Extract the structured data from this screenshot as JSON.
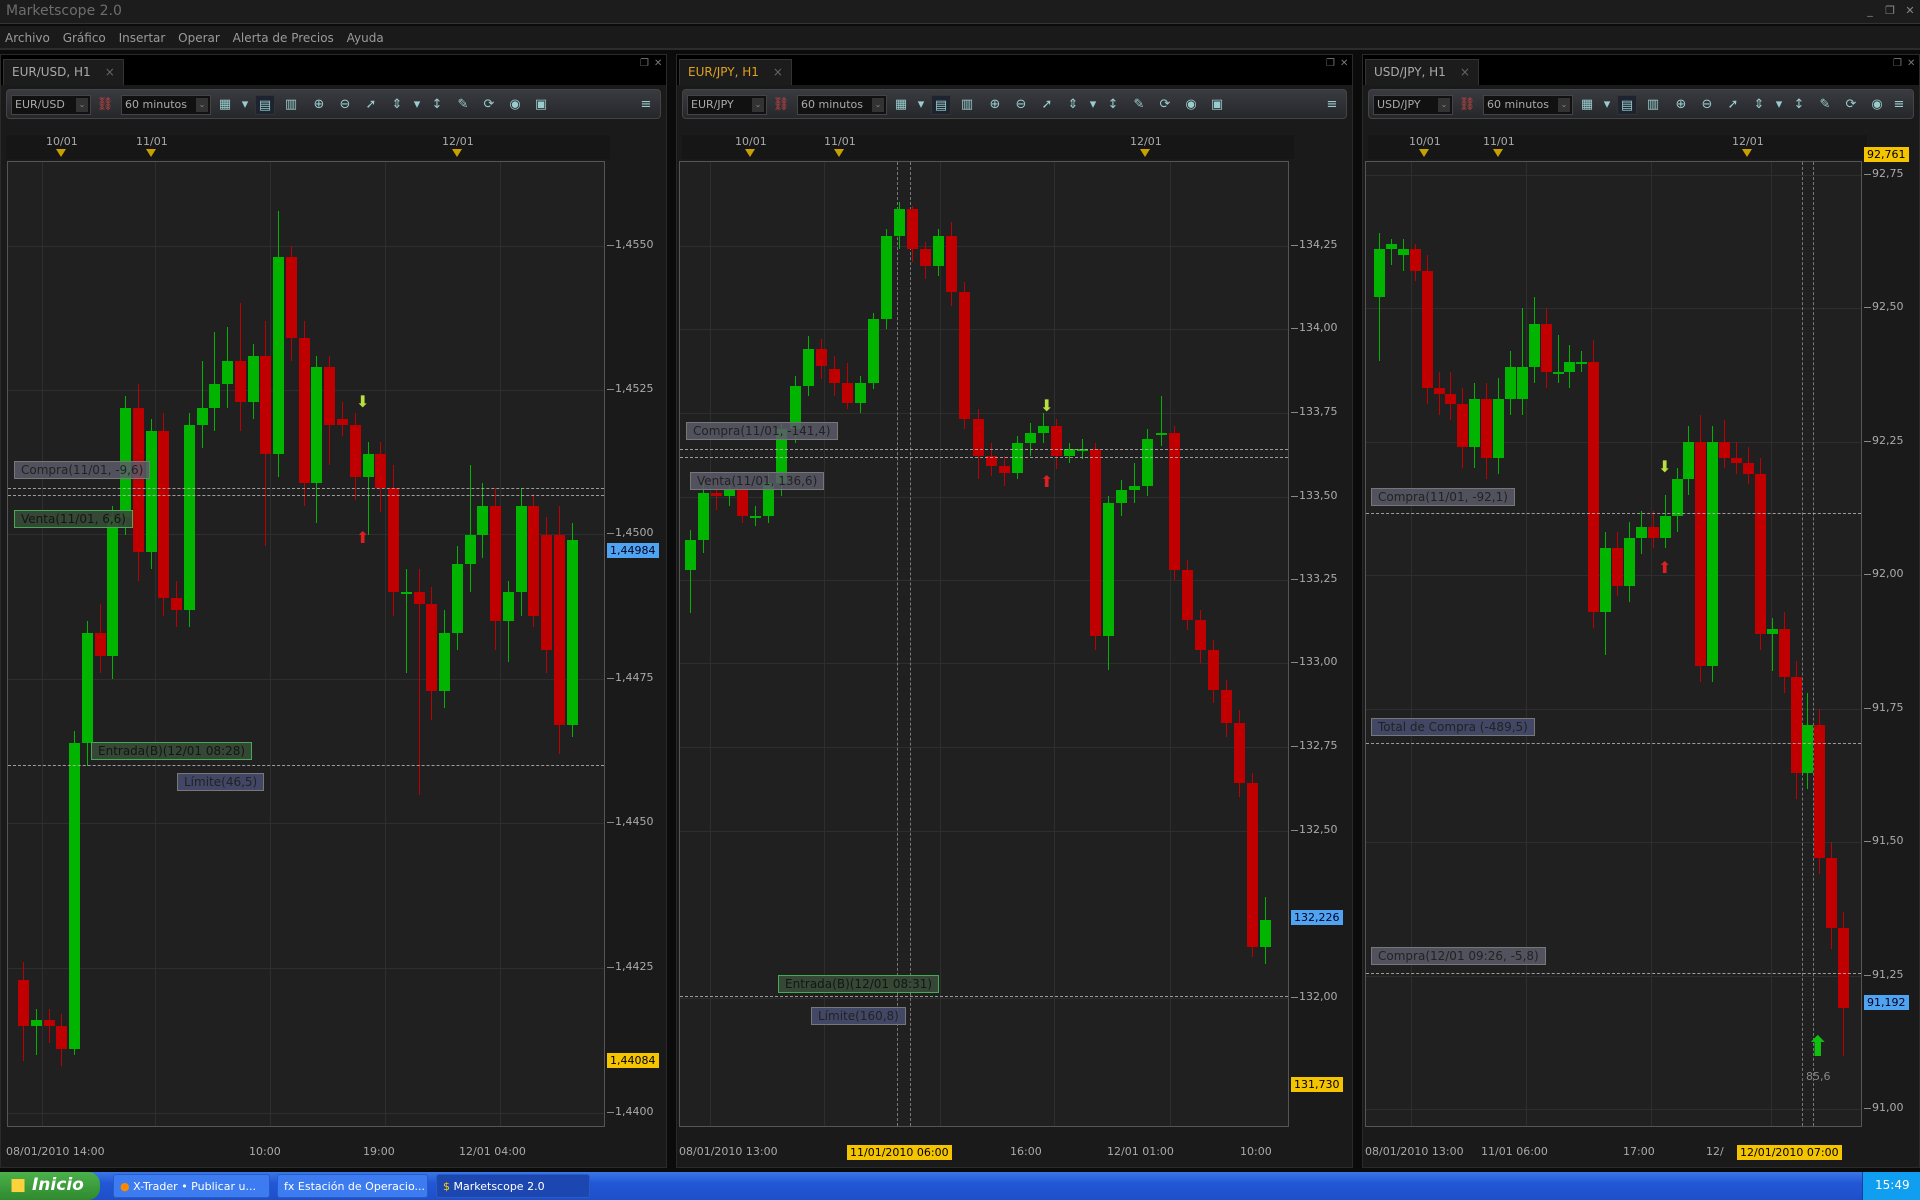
{
  "app": {
    "title": "Marketscope 2.0",
    "controls": [
      "_",
      "❐",
      "✕"
    ]
  },
  "menu": [
    "Archivo",
    "Gráfico",
    "Insertar",
    "Operar",
    "Alerta de Precios",
    "Ayuda"
  ],
  "colors": {
    "bull": "#00b400",
    "bear": "#c00000",
    "bid_label": "#4fa3f0",
    "highlight": "#f5c400",
    "background": "#202020"
  },
  "panels": [
    {
      "tab": "EUR/USD, H1",
      "active": false,
      "toolbar": {
        "symbol": "EUR/USD",
        "timeframe": "60 minutos"
      },
      "top_dates": [
        "10/01",
        "11/01",
        "12/01"
      ],
      "bottom_times": [
        "08/01/2010 14:00",
        "10:00",
        "19:00",
        "12/01 04:00"
      ],
      "price_ticks": [
        "1,4550",
        "1,4525",
        "1,4500",
        "1,4475",
        "1,4450",
        "1,4425",
        "1,4400"
      ],
      "bid": "1,44984",
      "low_marker": "1,44084",
      "orders": [
        "Compra(11/01, -9,6)",
        "Venta(11/01, 6,6)",
        "Entrada(B)(12/01 08:28)",
        "Límite(46,5)"
      ]
    },
    {
      "tab": "EUR/JPY, H1",
      "active": true,
      "toolbar": {
        "symbol": "EUR/JPY",
        "timeframe": "60 minutos"
      },
      "top_dates": [
        "10/01",
        "11/01",
        "12/01"
      ],
      "bottom_times": [
        "08/01/2010 13:00",
        "11/01/2010 06:00",
        "16:00",
        "12/01 01:00",
        "10:00"
      ],
      "price_ticks": [
        "134,25",
        "134,00",
        "133,75",
        "133,50",
        "133,25",
        "133,00",
        "132,75",
        "132,50",
        "132,00"
      ],
      "bid": "132,226",
      "low_marker": "131,730",
      "orders": [
        "Compra(11/01, -141,4)",
        "Venta(11/01, 136,6)",
        "Entrada(B)(12/01 08:31)",
        "Límite(160,8)"
      ]
    },
    {
      "tab": "USD/JPY, H1",
      "active": false,
      "toolbar": {
        "symbol": "USD/JPY",
        "timeframe": "60 minutos"
      },
      "top_dates": [
        "10/01",
        "11/01",
        "12/01"
      ],
      "bottom_times": [
        "08/01/2010 13:00",
        "11/01 06:00",
        "17:00",
        "12/",
        "12/01/2010 07:00"
      ],
      "price_ticks": [
        "92,75",
        "92,50",
        "92,25",
        "92,00",
        "91,75",
        "91,50",
        "91,25",
        "91,00"
      ],
      "bid": "91,192",
      "high_marker": "92,761",
      "signal_value": "85,6",
      "orders": [
        "Compra(11/01, -92,1)",
        "Total de Compra (-489,5)",
        "Compra(12/01 09:26, -5,8)"
      ]
    }
  ],
  "chart_data": [
    {
      "type": "candlestick",
      "title": "EUR/USD, H1",
      "ylim": [
        1.439,
        1.4565
      ],
      "ohlc": [
        [
          1.4423,
          1.4426,
          1.4409,
          1.4415
        ],
        [
          1.4415,
          1.4418,
          1.441,
          1.4416
        ],
        [
          1.4416,
          1.4418,
          1.4412,
          1.4415
        ],
        [
          1.4415,
          1.4417,
          1.4408,
          1.4411
        ],
        [
          1.4411,
          1.4466,
          1.441,
          1.4464
        ],
        [
          1.4464,
          1.4485,
          1.446,
          1.4483
        ],
        [
          1.4483,
          1.4488,
          1.4476,
          1.4479
        ],
        [
          1.4479,
          1.4505,
          1.4475,
          1.4503
        ],
        [
          1.4503,
          1.4524,
          1.45,
          1.4522
        ],
        [
          1.4522,
          1.4526,
          1.4492,
          1.4497
        ],
        [
          1.4497,
          1.452,
          1.4494,
          1.4518
        ],
        [
          1.4518,
          1.4521,
          1.4486,
          1.4489
        ],
        [
          1.4489,
          1.4492,
          1.4484,
          1.4487
        ],
        [
          1.4487,
          1.4521,
          1.4484,
          1.4519
        ],
        [
          1.4519,
          1.453,
          1.4515,
          1.4522
        ],
        [
          1.4522,
          1.4535,
          1.4518,
          1.4526
        ],
        [
          1.4526,
          1.4536,
          1.4522,
          1.453
        ],
        [
          1.453,
          1.454,
          1.4518,
          1.4523
        ],
        [
          1.4523,
          1.4533,
          1.452,
          1.4531
        ],
        [
          1.4531,
          1.4537,
          1.4498,
          1.4514
        ],
        [
          1.4514,
          1.4556,
          1.451,
          1.4548
        ],
        [
          1.4548,
          1.455,
          1.453,
          1.4534
        ],
        [
          1.4534,
          1.4537,
          1.4505,
          1.4509
        ],
        [
          1.4509,
          1.4531,
          1.4502,
          1.4529
        ],
        [
          1.4529,
          1.4531,
          1.4512,
          1.4519
        ],
        [
          1.452,
          1.4523,
          1.4517,
          1.4519
        ],
        [
          1.4519,
          1.4521,
          1.4506,
          1.451
        ],
        [
          1.451,
          1.4516,
          1.45,
          1.4514
        ],
        [
          1.4514,
          1.4516,
          1.4504,
          1.4508
        ],
        [
          1.4508,
          1.4512,
          1.4486,
          1.449
        ],
        [
          1.449,
          1.4494,
          1.4476,
          1.449
        ],
        [
          1.449,
          1.4494,
          1.4455,
          1.4488
        ],
        [
          1.4488,
          1.4491,
          1.4468,
          1.4473
        ],
        [
          1.4473,
          1.4487,
          1.447,
          1.4483
        ],
        [
          1.4483,
          1.4498,
          1.448,
          1.4495
        ],
        [
          1.4495,
          1.4512,
          1.449,
          1.45
        ],
        [
          1.45,
          1.4509,
          1.4496,
          1.4505
        ],
        [
          1.4505,
          1.4508,
          1.448,
          1.4485
        ],
        [
          1.4485,
          1.4492,
          1.4478,
          1.449
        ],
        [
          1.449,
          1.4508,
          1.4486,
          1.4505
        ],
        [
          1.4505,
          1.4507,
          1.4484,
          1.4486
        ],
        [
          1.45,
          1.4503,
          1.4476,
          1.448
        ],
        [
          1.45,
          1.4505,
          1.4462,
          1.4467
        ],
        [
          1.4467,
          1.4502,
          1.4465,
          1.4499
        ]
      ]
    },
    {
      "type": "candlestick",
      "title": "EUR/JPY, H1",
      "ylim": [
        131.65,
        134.45
      ],
      "ohlc": [
        [
          133.28,
          133.4,
          133.15,
          133.37
        ],
        [
          133.37,
          133.55,
          133.33,
          133.51
        ],
        [
          133.51,
          133.56,
          133.46,
          133.5
        ],
        [
          133.5,
          133.55,
          133.47,
          133.52
        ],
        [
          133.52,
          133.55,
          133.42,
          133.44
        ],
        [
          133.44,
          133.47,
          133.41,
          133.44
        ],
        [
          133.44,
          133.57,
          133.42,
          133.54
        ],
        [
          133.54,
          133.72,
          133.5,
          133.7
        ],
        [
          133.7,
          133.86,
          133.66,
          133.83
        ],
        [
          133.83,
          133.98,
          133.8,
          133.94
        ],
        [
          133.94,
          133.97,
          133.85,
          133.89
        ],
        [
          133.88,
          133.92,
          133.8,
          133.84
        ],
        [
          133.84,
          133.9,
          133.76,
          133.78
        ],
        [
          133.78,
          133.86,
          133.75,
          133.84
        ],
        [
          133.84,
          134.05,
          133.82,
          134.03
        ],
        [
          134.03,
          134.3,
          134.0,
          134.28
        ],
        [
          134.28,
          134.38,
          134.24,
          134.36
        ],
        [
          134.36,
          134.37,
          134.2,
          134.24
        ],
        [
          134.24,
          134.26,
          134.15,
          134.19
        ],
        [
          134.19,
          134.3,
          134.16,
          134.28
        ],
        [
          134.28,
          134.32,
          134.07,
          134.11
        ],
        [
          134.11,
          134.14,
          133.7,
          133.73
        ],
        [
          133.73,
          133.76,
          133.55,
          133.62
        ],
        [
          133.62,
          133.66,
          133.56,
          133.59
        ],
        [
          133.59,
          133.62,
          133.53,
          133.57
        ],
        [
          133.57,
          133.68,
          133.55,
          133.66
        ],
        [
          133.66,
          133.72,
          133.62,
          133.69
        ],
        [
          133.69,
          133.75,
          133.66,
          133.71
        ],
        [
          133.71,
          133.73,
          133.58,
          133.62
        ],
        [
          133.62,
          133.66,
          133.6,
          133.64
        ],
        [
          133.64,
          133.67,
          133.61,
          133.64
        ],
        [
          133.64,
          133.66,
          133.04,
          133.08
        ],
        [
          133.08,
          133.5,
          132.98,
          133.48
        ],
        [
          133.48,
          133.55,
          133.44,
          133.52
        ],
        [
          133.52,
          133.6,
          133.48,
          133.53
        ],
        [
          133.53,
          133.7,
          133.5,
          133.67
        ],
        [
          133.69,
          133.8,
          133.65,
          133.69
        ],
        [
          133.69,
          133.71,
          133.25,
          133.28
        ],
        [
          133.28,
          133.31,
          133.1,
          133.13
        ],
        [
          133.13,
          133.16,
          133.0,
          133.04
        ],
        [
          133.04,
          133.07,
          132.88,
          132.92
        ],
        [
          132.92,
          132.95,
          132.78,
          132.82
        ],
        [
          132.82,
          132.86,
          132.6,
          132.64
        ],
        [
          132.64,
          132.67,
          132.12,
          132.15
        ],
        [
          132.15,
          132.3,
          132.1,
          132.23
        ]
      ]
    },
    {
      "type": "candlestick",
      "title": "USD/JPY, H1",
      "ylim": [
        90.98,
        92.76
      ],
      "ohlc": [
        [
          92.52,
          92.64,
          92.4,
          92.61
        ],
        [
          92.61,
          92.63,
          92.58,
          92.62
        ],
        [
          92.6,
          92.63,
          92.57,
          92.61
        ],
        [
          92.61,
          92.62,
          92.55,
          92.57
        ],
        [
          92.57,
          92.6,
          92.32,
          92.35
        ],
        [
          92.35,
          92.38,
          92.3,
          92.34
        ],
        [
          92.34,
          92.38,
          92.29,
          92.32
        ],
        [
          92.32,
          92.35,
          92.2,
          92.24
        ],
        [
          92.24,
          92.36,
          92.2,
          92.33
        ],
        [
          92.33,
          92.36,
          92.18,
          92.22
        ],
        [
          92.22,
          92.37,
          92.19,
          92.33
        ],
        [
          92.33,
          92.42,
          92.3,
          92.39
        ],
        [
          92.33,
          92.5,
          92.3,
          92.39
        ],
        [
          92.39,
          92.52,
          92.36,
          92.47
        ],
        [
          92.47,
          92.5,
          92.35,
          92.38
        ],
        [
          92.38,
          92.45,
          92.36,
          92.38
        ],
        [
          92.38,
          92.43,
          92.35,
          92.4
        ],
        [
          92.4,
          92.42,
          92.38,
          92.4
        ],
        [
          92.4,
          92.44,
          91.9,
          91.93
        ],
        [
          91.93,
          92.08,
          91.85,
          92.05
        ],
        [
          92.05,
          92.08,
          91.96,
          91.98
        ],
        [
          91.98,
          92.1,
          91.95,
          92.07
        ],
        [
          92.07,
          92.12,
          92.04,
          92.09
        ],
        [
          92.09,
          92.12,
          92.05,
          92.07
        ],
        [
          92.07,
          92.15,
          92.05,
          92.11
        ],
        [
          92.11,
          92.2,
          92.08,
          92.18
        ],
        [
          92.18,
          92.28,
          92.15,
          92.25
        ],
        [
          92.25,
          92.3,
          91.8,
          91.83
        ],
        [
          91.83,
          92.28,
          91.8,
          92.25
        ],
        [
          92.25,
          92.29,
          92.2,
          92.22
        ],
        [
          92.22,
          92.25,
          92.19,
          92.21
        ],
        [
          92.21,
          92.24,
          92.17,
          92.19
        ],
        [
          92.19,
          92.22,
          91.86,
          91.89
        ],
        [
          91.89,
          91.92,
          91.82,
          91.9
        ],
        [
          91.9,
          91.93,
          91.78,
          91.81
        ],
        [
          91.81,
          91.84,
          91.58,
          91.63
        ],
        [
          91.63,
          91.78,
          91.6,
          91.72
        ],
        [
          91.72,
          91.75,
          91.44,
          91.47
        ],
        [
          91.47,
          91.5,
          91.3,
          91.34
        ],
        [
          91.34,
          91.37,
          91.1,
          91.19
        ]
      ]
    }
  ],
  "taskbar": {
    "start": "Inicio",
    "items": [
      "X-Trader • Publicar u...",
      "Estación de Operacio...",
      "Marketscope 2.0"
    ],
    "clock": "15:49"
  }
}
